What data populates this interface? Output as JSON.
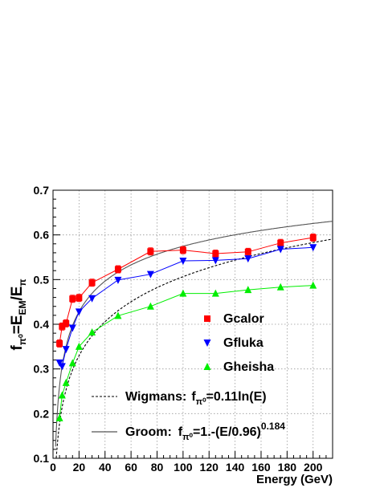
{
  "chart_data": {
    "type": "line",
    "xlabel": "Energy (GeV)",
    "ylabel": {
      "parts": [
        "f",
        "π⁰",
        "=E",
        "EM",
        "/E",
        "π"
      ]
    },
    "xlim": [
      0,
      215
    ],
    "ylim": [
      0.1,
      0.7
    ],
    "x_ticks": [
      0,
      20,
      40,
      60,
      80,
      100,
      120,
      140,
      160,
      180,
      200
    ],
    "y_ticks": [
      0.1,
      0.2,
      0.3,
      0.4,
      0.5,
      0.6,
      0.7
    ],
    "grid": true,
    "series": [
      {
        "name": "Gcalor",
        "color": "#ff0000",
        "marker": "square",
        "x": [
          5,
          7,
          10,
          15,
          20,
          30,
          50,
          75,
          100,
          125,
          150,
          175,
          200
        ],
        "y": [
          0.357,
          0.395,
          0.402,
          0.457,
          0.459,
          0.493,
          0.523,
          0.563,
          0.566,
          0.558,
          0.562,
          0.582,
          0.594
        ],
        "err": [
          0.008,
          0.008,
          0.008,
          0.008,
          0.008,
          0.008,
          0.008,
          0.008,
          0.008,
          0.008,
          0.008,
          0.008,
          0.008
        ]
      },
      {
        "name": "Gfluka",
        "color": "#0000ff",
        "marker": "triangle-down",
        "x": [
          5,
          7,
          10,
          15,
          20,
          30,
          50,
          75,
          100,
          125,
          150,
          175,
          200
        ],
        "y": [
          0.314,
          0.306,
          0.344,
          0.392,
          0.428,
          0.458,
          0.499,
          0.512,
          0.542,
          0.543,
          0.547,
          0.568,
          0.572
        ]
      },
      {
        "name": "Gheisha",
        "color": "#00ee00",
        "marker": "triangle-up",
        "x": [
          5,
          7,
          10,
          15,
          20,
          30,
          50,
          75,
          100,
          125,
          150,
          175,
          200
        ],
        "y": [
          0.19,
          0.241,
          0.269,
          0.313,
          0.35,
          0.382,
          0.419,
          0.44,
          0.469,
          0.469,
          0.477,
          0.483,
          0.487
        ]
      }
    ],
    "curves": [
      {
        "name": "Wigmans",
        "formula": "0.11 ln(E)",
        "style": "dashed",
        "color": "#000000",
        "coef": 0.11
      },
      {
        "name": "Groom",
        "formula": "1-(E/0.96)^-0.184",
        "style": "solid",
        "color": "#555555",
        "e0": 0.96,
        "exponent": 0.184
      }
    ],
    "legend": {
      "placement": "bottom-right",
      "markers": [
        "Gcalor",
        "Gfluka",
        "Gheisha"
      ],
      "wigmans": {
        "name": "Wigmans",
        "sep": ":",
        "lhs_main": "f",
        "lhs_sub": "π⁰",
        "rhs": "=0.11ln(E)"
      },
      "groom": {
        "name": "Groom",
        "sep": ":",
        "lhs_main": "f",
        "lhs_sub": "π⁰",
        "rhs": "=1.-(E/0.96)",
        "sup": "0.184"
      }
    }
  }
}
